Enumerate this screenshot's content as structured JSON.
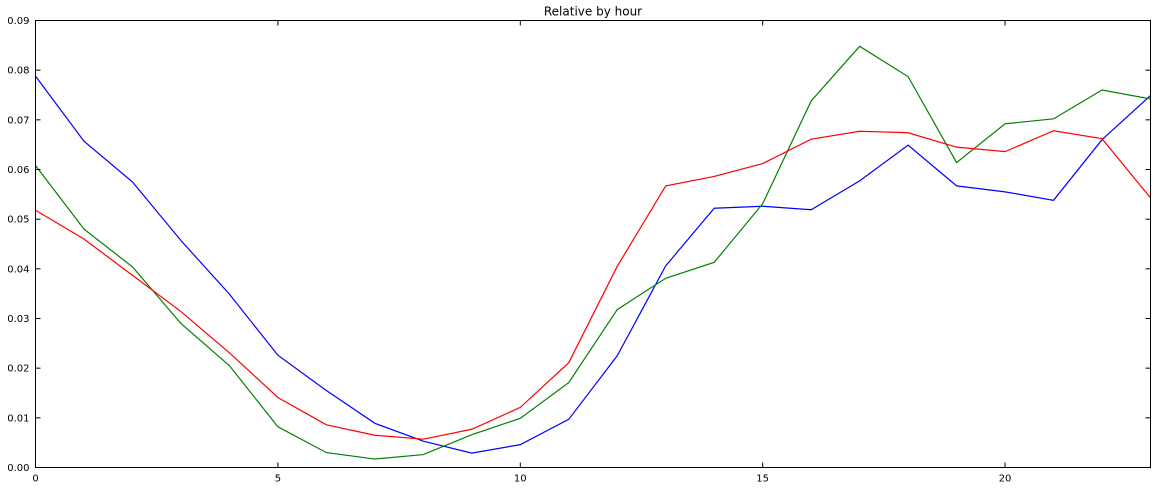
{
  "chart_data": {
    "type": "line",
    "title": "Relative by hour",
    "xlabel": "",
    "ylabel": "",
    "xlim": [
      0,
      23
    ],
    "ylim": [
      0,
      0.09
    ],
    "x_ticks": [
      0,
      5,
      10,
      15,
      20
    ],
    "x_tick_labels": [
      "0",
      "5",
      "10",
      "15",
      "20"
    ],
    "y_ticks": [
      0,
      0.01,
      0.02,
      0.03,
      0.04,
      0.05,
      0.06,
      0.07,
      0.08,
      0.09
    ],
    "y_tick_labels": [
      "0.00",
      "0.01",
      "0.02",
      "0.03",
      "0.04",
      "0.05",
      "0.06",
      "0.07",
      "0.08",
      "0.09"
    ],
    "grid": false,
    "legend": "none",
    "x": [
      0,
      1,
      2,
      3,
      4,
      5,
      6,
      7,
      8,
      9,
      10,
      11,
      12,
      13,
      14,
      15,
      16,
      17,
      18,
      19,
      20,
      21,
      22,
      23
    ],
    "series": [
      {
        "color": "#0000ff",
        "values": [
          0.0788,
          0.0657,
          0.0575,
          0.0457,
          0.0349,
          0.0226,
          0.0155,
          0.0089,
          0.0053,
          0.0029,
          0.0046,
          0.0097,
          0.0225,
          0.0406,
          0.0522,
          0.0526,
          0.0519,
          0.0577,
          0.0649,
          0.0567,
          0.0555,
          0.0538,
          0.066,
          0.0749
        ]
      },
      {
        "color": "#008000",
        "values": [
          0.0608,
          0.048,
          0.0404,
          0.029,
          0.0205,
          0.0082,
          0.003,
          0.0017,
          0.0026,
          0.0066,
          0.0099,
          0.0171,
          0.0318,
          0.0381,
          0.0413,
          0.0531,
          0.0738,
          0.0848,
          0.0787,
          0.0614,
          0.0692,
          0.0702,
          0.076,
          0.0742
        ]
      },
      {
        "color": "#ff0000",
        "values": [
          0.0518,
          0.046,
          0.0387,
          0.0314,
          0.0231,
          0.0141,
          0.0086,
          0.0065,
          0.0057,
          0.0077,
          0.0121,
          0.0211,
          0.0405,
          0.0567,
          0.0586,
          0.0612,
          0.0661,
          0.0677,
          0.0674,
          0.0645,
          0.0636,
          0.0678,
          0.0662,
          0.0543
        ]
      }
    ]
  }
}
